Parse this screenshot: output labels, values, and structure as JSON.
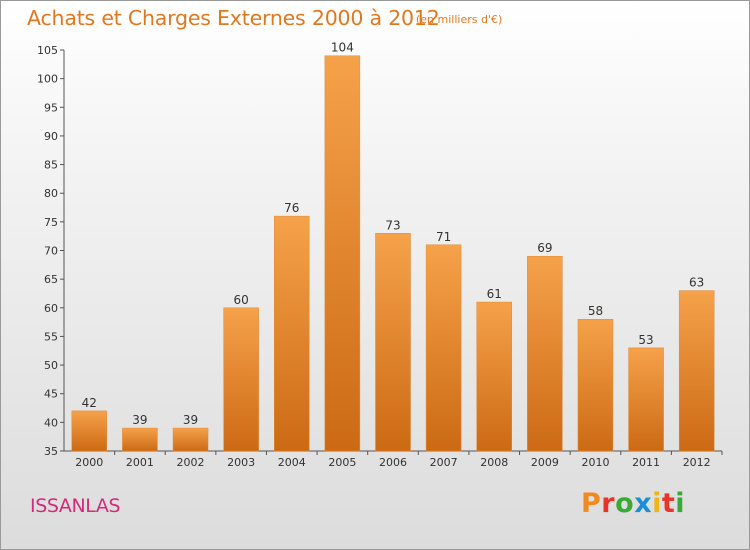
{
  "header": {
    "title": "Achats et Charges Externes 2000 à 2012",
    "unit": "(en milliers d'€)"
  },
  "footer": {
    "commune": "ISSANLAS",
    "logo_letters": [
      "P",
      "r",
      "o",
      "x",
      "i",
      "t",
      "i"
    ],
    "logo_colors": [
      "#f08a1c",
      "#e8332a",
      "#3aa935",
      "#1a8fd6",
      "#f0b416",
      "#e8332a",
      "#3aa935"
    ]
  },
  "chart_data": {
    "type": "bar",
    "categories": [
      "2000",
      "2001",
      "2002",
      "2003",
      "2004",
      "2005",
      "2006",
      "2007",
      "2008",
      "2009",
      "2010",
      "2011",
      "2012"
    ],
    "values": [
      42,
      39,
      39,
      60,
      76,
      104,
      73,
      71,
      61,
      69,
      58,
      53,
      63
    ],
    "title": "Achats et Charges Externes 2000 à 2012",
    "subtitle": "(en milliers d'€)",
    "ylim": [
      35,
      105
    ],
    "yticks": [
      35,
      40,
      45,
      50,
      55,
      60,
      65,
      70,
      75,
      80,
      85,
      90,
      95,
      100,
      105
    ],
    "grid": false,
    "data_labels": true,
    "bar_color_top": "#f5a24a",
    "bar_color_bottom": "#cc6a14",
    "text_color": "#333333"
  }
}
